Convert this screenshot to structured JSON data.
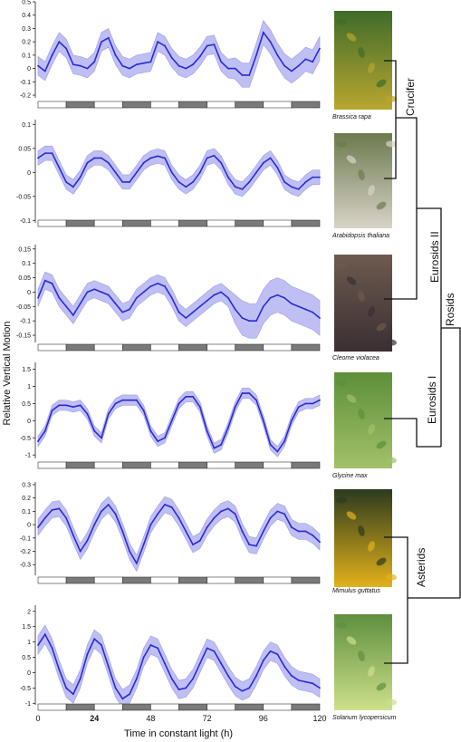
{
  "figure": {
    "ylabel": "Relative Vertical Motion",
    "xlabel": "Time in constant light (h)",
    "series_color": "#2a2ad8",
    "band_color": "#aaaaf0",
    "light_bar_color": "#ffffff",
    "dark_bar_color": "#7a7a7a"
  },
  "tree": {
    "clades": [
      "Crucifer",
      "Eurosids II",
      "Rosids",
      "Eurosids I",
      "Asterids"
    ]
  },
  "photo_colors": [
    [
      "#3f6b2a",
      "#b9a630"
    ],
    [
      "#6c7a4e",
      "#d8d3c8"
    ],
    [
      "#6d5a4f",
      "#3b2f33"
    ],
    [
      "#5d8f3a",
      "#a3c069"
    ],
    [
      "#2c3a1e",
      "#e2b21a"
    ],
    [
      "#5f8f3f",
      "#cde08a"
    ]
  ],
  "chart_data": [
    {
      "type": "line",
      "species": "Brassica rapa",
      "ylim": [
        -0.22,
        0.5
      ],
      "yticks": [
        0.5,
        0.4,
        0.3,
        0.2,
        0.1,
        0,
        -0.1,
        -0.2
      ],
      "xlim": [
        0,
        120
      ],
      "xticks": [
        0,
        24,
        48,
        72,
        96,
        120
      ],
      "light_dark": [
        [
          "light",
          0,
          12
        ],
        [
          "dark",
          12,
          24
        ],
        [
          "light",
          24,
          36
        ],
        [
          "dark",
          36,
          48
        ],
        [
          "light",
          48,
          60
        ],
        [
          "dark",
          60,
          72
        ],
        [
          "light",
          72,
          84
        ],
        [
          "dark",
          84,
          96
        ],
        [
          "light",
          96,
          108
        ],
        [
          "dark",
          108,
          120
        ]
      ],
      "x": [
        0,
        3,
        6,
        9,
        12,
        15,
        18,
        21,
        24,
        27,
        30,
        33,
        36,
        39,
        42,
        45,
        48,
        51,
        54,
        57,
        60,
        63,
        66,
        69,
        72,
        75,
        78,
        81,
        84,
        87,
        90,
        93,
        96,
        99,
        102,
        105,
        108,
        111,
        114,
        117,
        120
      ],
      "y": [
        0.02,
        -0.02,
        0.1,
        0.2,
        0.15,
        0.03,
        0.02,
        0.0,
        0.05,
        0.2,
        0.23,
        0.1,
        0.02,
        0.0,
        0.03,
        0.04,
        0.05,
        0.2,
        0.17,
        0.08,
        0.02,
        0.0,
        0.03,
        0.09,
        0.17,
        0.18,
        0.05,
        0.0,
        0.0,
        -0.05,
        -0.05,
        0.1,
        0.27,
        0.2,
        0.1,
        0.02,
        -0.02,
        0.02,
        0.07,
        0.05,
        0.15
      ],
      "err": [
        0.07,
        0.07,
        0.07,
        0.07,
        0.07,
        0.07,
        0.07,
        0.07,
        0.07,
        0.07,
        0.07,
        0.07,
        0.07,
        0.07,
        0.07,
        0.07,
        0.07,
        0.07,
        0.07,
        0.07,
        0.07,
        0.07,
        0.07,
        0.07,
        0.07,
        0.07,
        0.07,
        0.07,
        0.08,
        0.09,
        0.09,
        0.09,
        0.09,
        0.09,
        0.09,
        0.09,
        0.09,
        0.09,
        0.09,
        0.09,
        0.09
      ]
    },
    {
      "type": "line",
      "species": "Arabidopsis thaliana",
      "ylim": [
        -0.105,
        0.11
      ],
      "yticks": [
        0.1,
        0.05,
        0,
        -0.05,
        -0.1
      ],
      "xlim": [
        0,
        120
      ],
      "xticks": [
        0,
        24,
        48,
        72,
        96,
        120
      ],
      "light_dark": [
        [
          "light",
          0,
          12
        ],
        [
          "dark",
          12,
          24
        ],
        [
          "light",
          24,
          36
        ],
        [
          "dark",
          36,
          48
        ],
        [
          "light",
          48,
          60
        ],
        [
          "dark",
          60,
          72
        ],
        [
          "light",
          72,
          84
        ],
        [
          "dark",
          84,
          96
        ],
        [
          "light",
          96,
          108
        ],
        [
          "dark",
          108,
          120
        ]
      ],
      "x": [
        0,
        3,
        6,
        9,
        12,
        15,
        18,
        21,
        24,
        27,
        30,
        33,
        36,
        39,
        42,
        45,
        48,
        51,
        54,
        57,
        60,
        63,
        66,
        69,
        72,
        75,
        78,
        81,
        84,
        87,
        90,
        93,
        96,
        99,
        102,
        105,
        108,
        111,
        114,
        117,
        120
      ],
      "y": [
        0.03,
        0.04,
        0.04,
        0.01,
        -0.02,
        -0.03,
        -0.01,
        0.02,
        0.03,
        0.03,
        0.02,
        0.0,
        -0.02,
        -0.02,
        0.0,
        0.02,
        0.03,
        0.034,
        0.03,
        0.0,
        -0.02,
        -0.03,
        -0.02,
        0.0,
        0.03,
        0.035,
        0.02,
        -0.01,
        -0.03,
        -0.035,
        -0.02,
        0.0,
        0.02,
        0.03,
        0.01,
        -0.02,
        -0.03,
        -0.035,
        -0.02,
        -0.01,
        -0.01
      ],
      "err": [
        0.015,
        0.015,
        0.015,
        0.015,
        0.015,
        0.015,
        0.015,
        0.015,
        0.015,
        0.015,
        0.015,
        0.015,
        0.015,
        0.015,
        0.015,
        0.015,
        0.015,
        0.015,
        0.015,
        0.015,
        0.015,
        0.015,
        0.015,
        0.015,
        0.015,
        0.015,
        0.015,
        0.015,
        0.015,
        0.015,
        0.015,
        0.015,
        0.015,
        0.015,
        0.015,
        0.015,
        0.015,
        0.015,
        0.015,
        0.015,
        0.015
      ]
    },
    {
      "type": "line",
      "species": "Cleome violacea",
      "ylim": [
        -0.175,
        0.165
      ],
      "yticks": [
        0.15,
        0.1,
        0.05,
        0,
        -0.05,
        -0.1,
        -0.15
      ],
      "xlim": [
        0,
        120
      ],
      "xticks": [
        0,
        24,
        48,
        72,
        96,
        120
      ],
      "light_dark": [
        [
          "light",
          0,
          12
        ],
        [
          "dark",
          12,
          24
        ],
        [
          "light",
          24,
          36
        ],
        [
          "dark",
          36,
          48
        ],
        [
          "light",
          48,
          60
        ],
        [
          "dark",
          60,
          72
        ],
        [
          "light",
          72,
          84
        ],
        [
          "dark",
          84,
          96
        ],
        [
          "light",
          96,
          108
        ],
        [
          "dark",
          108,
          120
        ]
      ],
      "x": [
        0,
        3,
        6,
        9,
        12,
        15,
        18,
        21,
        24,
        27,
        30,
        33,
        36,
        39,
        42,
        45,
        48,
        51,
        54,
        57,
        60,
        63,
        66,
        69,
        72,
        75,
        78,
        81,
        84,
        87,
        90,
        93,
        96,
        99,
        102,
        105,
        108,
        111,
        114,
        117,
        120
      ],
      "y": [
        -0.02,
        0.04,
        0.03,
        -0.02,
        -0.05,
        -0.08,
        -0.04,
        0.0,
        0.01,
        0.0,
        -0.01,
        -0.04,
        -0.07,
        -0.06,
        -0.02,
        0.0,
        0.02,
        0.03,
        0.02,
        -0.02,
        -0.07,
        -0.09,
        -0.07,
        -0.05,
        -0.03,
        -0.01,
        0.0,
        -0.02,
        -0.06,
        -0.09,
        -0.1,
        -0.1,
        -0.05,
        -0.02,
        -0.01,
        -0.02,
        -0.04,
        -0.05,
        -0.06,
        -0.07,
        -0.09
      ],
      "err": [
        0.03,
        0.03,
        0.03,
        0.03,
        0.03,
        0.03,
        0.03,
        0.03,
        0.03,
        0.03,
        0.03,
        0.03,
        0.03,
        0.03,
        0.03,
        0.03,
        0.03,
        0.03,
        0.03,
        0.03,
        0.03,
        0.03,
        0.03,
        0.03,
        0.03,
        0.03,
        0.03,
        0.03,
        0.05,
        0.06,
        0.06,
        0.06,
        0.06,
        0.06,
        0.06,
        0.06,
        0.06,
        0.06,
        0.06,
        0.06,
        0.06
      ]
    },
    {
      "type": "line",
      "species": "Glycine max",
      "ylim": [
        -1.1,
        1.7
      ],
      "yticks": [
        1.5,
        1,
        0.5,
        0,
        -0.5,
        -1
      ],
      "xlim": [
        0,
        120
      ],
      "xticks": [
        0,
        24,
        48,
        72,
        96,
        120
      ],
      "light_dark": [
        [
          "light",
          0,
          12
        ],
        [
          "dark",
          12,
          24
        ],
        [
          "light",
          24,
          36
        ],
        [
          "dark",
          36,
          48
        ],
        [
          "light",
          48,
          60
        ],
        [
          "dark",
          60,
          72
        ],
        [
          "light",
          72,
          84
        ],
        [
          "dark",
          84,
          96
        ],
        [
          "light",
          96,
          108
        ],
        [
          "dark",
          108,
          120
        ]
      ],
      "x": [
        0,
        3,
        6,
        9,
        12,
        15,
        18,
        21,
        24,
        27,
        30,
        33,
        36,
        39,
        42,
        45,
        48,
        51,
        54,
        57,
        60,
        63,
        66,
        69,
        72,
        75,
        78,
        81,
        84,
        87,
        90,
        93,
        96,
        99,
        102,
        105,
        108,
        111,
        114,
        117,
        120
      ],
      "y": [
        -0.6,
        -0.3,
        0.3,
        0.45,
        0.45,
        0.4,
        0.45,
        0.2,
        -0.3,
        -0.5,
        0.2,
        0.5,
        0.6,
        0.6,
        0.6,
        0.3,
        -0.3,
        -0.6,
        -0.5,
        0.0,
        0.5,
        0.7,
        0.7,
        0.4,
        -0.3,
        -0.8,
        -0.7,
        -0.2,
        0.4,
        0.8,
        0.8,
        0.6,
        0.0,
        -0.7,
        -0.9,
        -0.6,
        0.0,
        0.4,
        0.5,
        0.5,
        0.6
      ],
      "err": [
        0.15,
        0.15,
        0.15,
        0.15,
        0.15,
        0.15,
        0.15,
        0.15,
        0.15,
        0.15,
        0.15,
        0.15,
        0.15,
        0.15,
        0.15,
        0.15,
        0.15,
        0.15,
        0.15,
        0.15,
        0.15,
        0.15,
        0.15,
        0.15,
        0.15,
        0.15,
        0.15,
        0.15,
        0.15,
        0.15,
        0.15,
        0.15,
        0.15,
        0.15,
        0.15,
        0.15,
        0.15,
        0.15,
        0.15,
        0.15,
        0.15
      ]
    },
    {
      "type": "line",
      "species": "Mimulus guttatus",
      "ylim": [
        -0.38,
        0.32
      ],
      "yticks": [
        0.3,
        0.2,
        0.1,
        0,
        -0.1,
        -0.2,
        -0.3
      ],
      "xlim": [
        0,
        120
      ],
      "xticks": [
        0,
        24,
        48,
        72,
        96,
        120
      ],
      "light_dark": [
        [
          "light",
          0,
          12
        ],
        [
          "dark",
          12,
          24
        ],
        [
          "light",
          24,
          36
        ],
        [
          "dark",
          36,
          48
        ],
        [
          "light",
          48,
          60
        ],
        [
          "dark",
          60,
          72
        ],
        [
          "light",
          72,
          84
        ],
        [
          "dark",
          84,
          96
        ],
        [
          "light",
          96,
          108
        ],
        [
          "dark",
          108,
          120
        ]
      ],
      "x": [
        0,
        3,
        6,
        9,
        12,
        15,
        18,
        21,
        24,
        27,
        30,
        33,
        36,
        39,
        42,
        45,
        48,
        51,
        54,
        57,
        60,
        63,
        66,
        69,
        72,
        75,
        78,
        81,
        84,
        87,
        90,
        93,
        96,
        99,
        102,
        105,
        108,
        111,
        114,
        117,
        120
      ],
      "y": [
        -0.02,
        0.05,
        0.11,
        0.12,
        0.05,
        -0.08,
        -0.2,
        -0.12,
        0.0,
        0.1,
        0.15,
        0.08,
        -0.05,
        -0.2,
        -0.29,
        -0.15,
        0.0,
        0.08,
        0.15,
        0.13,
        0.05,
        -0.05,
        -0.15,
        -0.12,
        -0.02,
        0.05,
        0.1,
        0.12,
        0.08,
        -0.05,
        -0.15,
        -0.16,
        -0.05,
        0.05,
        0.1,
        0.08,
        -0.02,
        -0.05,
        -0.05,
        -0.08,
        -0.13
      ],
      "err": [
        0.06,
        0.06,
        0.06,
        0.06,
        0.06,
        0.06,
        0.06,
        0.06,
        0.06,
        0.06,
        0.06,
        0.06,
        0.06,
        0.06,
        0.06,
        0.06,
        0.06,
        0.06,
        0.06,
        0.06,
        0.06,
        0.06,
        0.06,
        0.06,
        0.06,
        0.06,
        0.06,
        0.06,
        0.06,
        0.06,
        0.06,
        0.06,
        0.06,
        0.06,
        0.06,
        0.06,
        0.06,
        0.06,
        0.06,
        0.06,
        0.06
      ]
    },
    {
      "type": "line",
      "species": "Solanum lycopersicum",
      "ylim": [
        -1.05,
        2.2
      ],
      "yticks": [
        2.0,
        1.5,
        1.0,
        0.5,
        0,
        -0.5,
        -1.0
      ],
      "xlim": [
        0,
        120
      ],
      "xticks": [
        0,
        24,
        48,
        72,
        96,
        120
      ],
      "light_dark": [
        [
          "light",
          0,
          12
        ],
        [
          "dark",
          12,
          24
        ],
        [
          "light",
          24,
          36
        ],
        [
          "dark",
          36,
          48
        ],
        [
          "light",
          48,
          60
        ],
        [
          "dark",
          60,
          72
        ],
        [
          "light",
          72,
          84
        ],
        [
          "dark",
          84,
          96
        ],
        [
          "light",
          96,
          108
        ],
        [
          "dark",
          108,
          120
        ]
      ],
      "x": [
        0,
        3,
        6,
        9,
        12,
        15,
        18,
        21,
        24,
        27,
        30,
        33,
        36,
        39,
        42,
        45,
        48,
        51,
        54,
        57,
        60,
        63,
        66,
        69,
        72,
        75,
        78,
        81,
        84,
        87,
        90,
        93,
        96,
        99,
        102,
        105,
        108,
        111,
        114,
        117,
        120
      ],
      "y": [
        0.9,
        1.25,
        0.8,
        0.1,
        -0.5,
        -0.7,
        -0.2,
        0.6,
        1.1,
        0.9,
        0.2,
        -0.5,
        -0.85,
        -0.7,
        -0.2,
        0.5,
        0.9,
        0.8,
        0.3,
        -0.2,
        -0.55,
        -0.5,
        -0.2,
        0.3,
        0.8,
        0.7,
        0.3,
        -0.1,
        -0.45,
        -0.6,
        -0.5,
        -0.1,
        0.4,
        0.7,
        0.6,
        0.2,
        -0.1,
        -0.25,
        -0.3,
        -0.35,
        -0.5
      ],
      "err": [
        0.3,
        0.3,
        0.3,
        0.3,
        0.3,
        0.3,
        0.3,
        0.3,
        0.3,
        0.3,
        0.3,
        0.3,
        0.3,
        0.3,
        0.3,
        0.3,
        0.3,
        0.3,
        0.3,
        0.3,
        0.3,
        0.3,
        0.3,
        0.3,
        0.3,
        0.3,
        0.3,
        0.3,
        0.3,
        0.3,
        0.3,
        0.3,
        0.3,
        0.3,
        0.3,
        0.3,
        0.3,
        0.3,
        0.3,
        0.3,
        0.3
      ]
    }
  ]
}
